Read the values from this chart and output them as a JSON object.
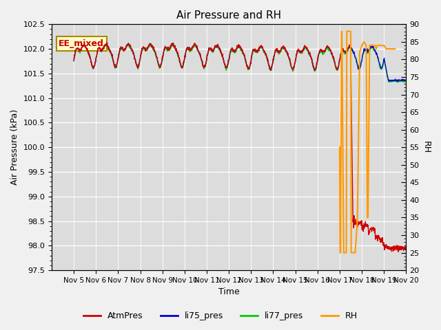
{
  "title": "Air Pressure and RH",
  "xlabel": "Time",
  "ylabel_left": "Air Pressure (kPa)",
  "ylabel_right": "RH",
  "ylim_left": [
    97.5,
    102.5
  ],
  "ylim_right": [
    20,
    90
  ],
  "yticks_left": [
    97.5,
    98.0,
    98.5,
    99.0,
    99.5,
    100.0,
    100.5,
    101.0,
    101.5,
    102.0,
    102.5
  ],
  "yticks_right": [
    20,
    25,
    30,
    35,
    40,
    45,
    50,
    55,
    60,
    65,
    70,
    75,
    80,
    85,
    90
  ],
  "xtick_positions": [
    5,
    6,
    7,
    8,
    9,
    10,
    11,
    12,
    13,
    14,
    15,
    16,
    17,
    18,
    19,
    20
  ],
  "xtick_labels": [
    "Nov 5",
    "Nov 6",
    "Nov 7",
    "Nov 8",
    "Nov 9",
    "Nov 10",
    "Nov 11",
    "Nov 12",
    "Nov 13",
    "Nov 14",
    "Nov 15",
    "Nov 16",
    "Nov 17",
    "Nov 18",
    "Nov 19",
    "Nov 20"
  ],
  "legend_labels": [
    "AtmPres",
    "li75_pres",
    "li77_pres",
    "RH"
  ],
  "atm_color": "#cc0000",
  "li75_color": "#0000cc",
  "li77_color": "#00cc00",
  "rh_color": "#ff9900",
  "bg_color": "#dcdcdc",
  "fig_bg_color": "#f0f0f0",
  "annotation_text": "EE_mixed",
  "annotation_bg": "#ffffcc",
  "annotation_border": "#aa8800",
  "xlim": [
    4,
    20
  ]
}
